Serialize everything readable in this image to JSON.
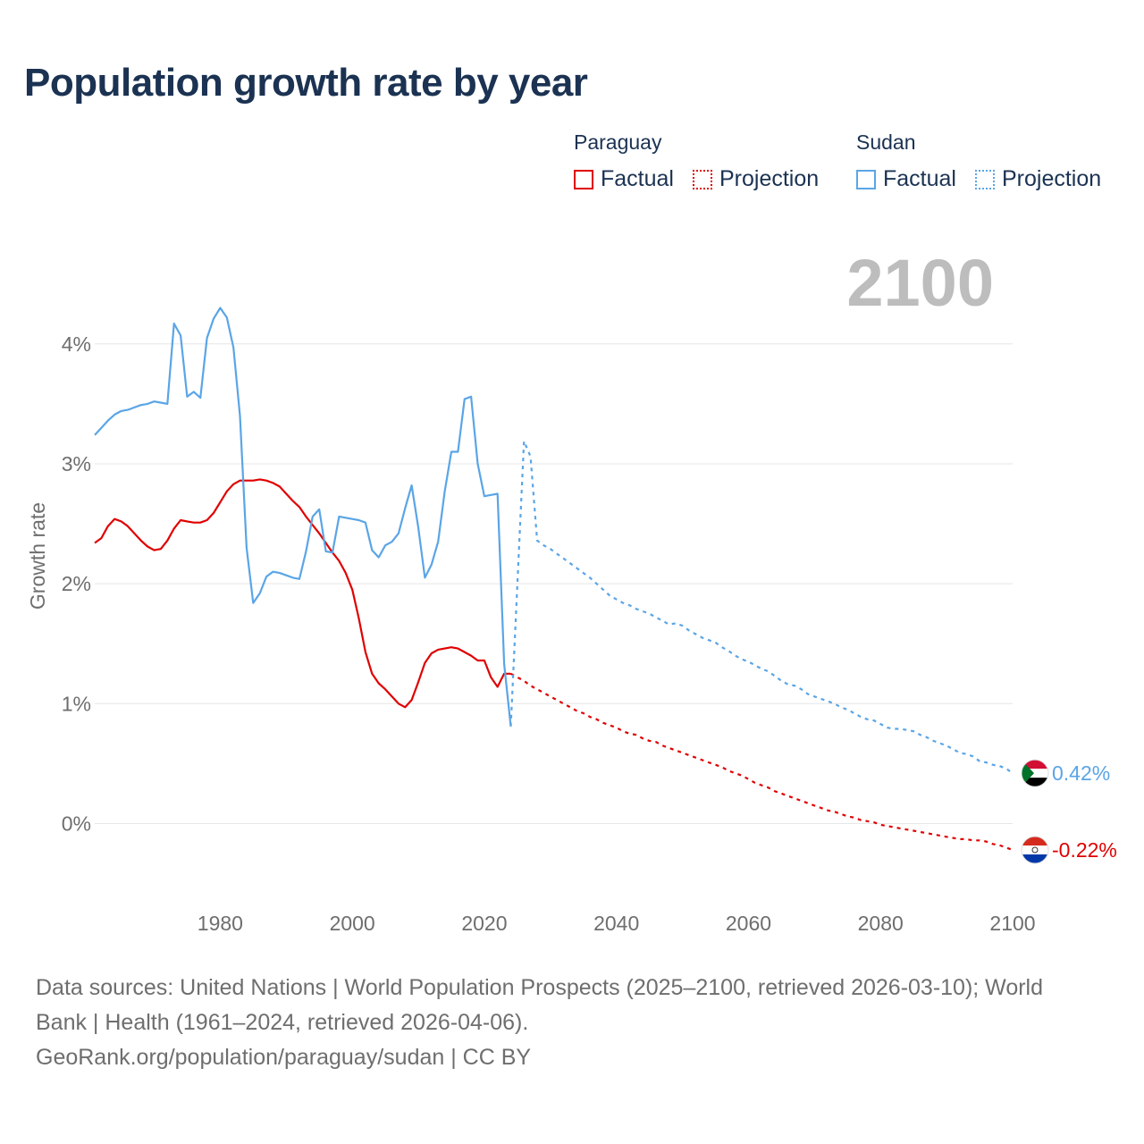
{
  "title": "Population growth rate by year",
  "legend": {
    "groups": [
      {
        "country": "Paraguay",
        "color": "#e00000",
        "factual_label": "Factual",
        "projection_label": "Projection"
      },
      {
        "country": "Sudan",
        "color": "#5aa5e6",
        "factual_label": "Factual",
        "projection_label": "Projection"
      }
    ]
  },
  "year_display": "2100",
  "source": {
    "line1": "Data sources: United Nations | World Population Prospects (2025–2100, retrieved 2026-03-10); World Bank | Health (1961–2024, retrieved 2026-04-06).",
    "line2": "GeoRank.org/population/paraguay/sudan | CC BY"
  },
  "chart_data": {
    "type": "line",
    "title": "Population growth rate by year",
    "xlabel": "",
    "ylabel": "Growth rate",
    "xlim": [
      1961,
      2100
    ],
    "ylim": [
      -0.6,
      4.9
    ],
    "x_ticks": [
      1980,
      2000,
      2020,
      2040,
      2060,
      2080,
      2100
    ],
    "y_ticks": [
      0,
      1,
      2,
      3,
      4
    ],
    "y_tick_labels": [
      "0%",
      "1%",
      "2%",
      "3%",
      "4%"
    ],
    "grid": true,
    "series": [
      {
        "name": "Paraguay",
        "color": "#e00000",
        "end_label": "-0.22%",
        "factual": {
          "x": [
            1961,
            1962,
            1963,
            1964,
            1965,
            1966,
            1967,
            1968,
            1969,
            1970,
            1971,
            1972,
            1973,
            1974,
            1975,
            1976,
            1977,
            1978,
            1979,
            1980,
            1981,
            1982,
            1983,
            1984,
            1985,
            1986,
            1987,
            1988,
            1989,
            1990,
            1991,
            1992,
            1993,
            1994,
            1995,
            1996,
            1997,
            1998,
            1999,
            2000,
            2001,
            2002,
            2003,
            2004,
            2005,
            2006,
            2007,
            2008,
            2009,
            2010,
            2011,
            2012,
            2013,
            2014,
            2015,
            2016,
            2017,
            2018,
            2019,
            2020,
            2021,
            2022,
            2023,
            2024
          ],
          "y": [
            2.34,
            2.38,
            2.48,
            2.54,
            2.52,
            2.48,
            2.42,
            2.36,
            2.31,
            2.28,
            2.29,
            2.36,
            2.46,
            2.53,
            2.52,
            2.51,
            2.51,
            2.53,
            2.59,
            2.68,
            2.77,
            2.83,
            2.86,
            2.86,
            2.86,
            2.87,
            2.86,
            2.84,
            2.81,
            2.75,
            2.69,
            2.64,
            2.56,
            2.49,
            2.42,
            2.34,
            2.26,
            2.19,
            2.09,
            1.95,
            1.71,
            1.43,
            1.25,
            1.17,
            1.12,
            1.06,
            1.0,
            0.97,
            1.03,
            1.18,
            1.34,
            1.42,
            1.45,
            1.46,
            1.47,
            1.46,
            1.43,
            1.4,
            1.36,
            1.36,
            1.22,
            1.14,
            1.25,
            1.25
          ]
        },
        "projection": {
          "x": [
            2024,
            2025,
            2026,
            2027,
            2028,
            2029,
            2030,
            2031,
            2032,
            2033,
            2034,
            2035,
            2036,
            2037,
            2038,
            2039,
            2040,
            2041,
            2042,
            2043,
            2044,
            2045,
            2046,
            2047,
            2048,
            2049,
            2050,
            2051,
            2052,
            2053,
            2054,
            2055,
            2056,
            2057,
            2058,
            2059,
            2060,
            2061,
            2062,
            2063,
            2064,
            2065,
            2066,
            2067,
            2068,
            2069,
            2070,
            2071,
            2072,
            2073,
            2074,
            2075,
            2076,
            2077,
            2078,
            2079,
            2080,
            2081,
            2082,
            2083,
            2084,
            2085,
            2086,
            2087,
            2088,
            2089,
            2090,
            2091,
            2092,
            2093,
            2094,
            2095,
            2096,
            2097,
            2098,
            2099,
            2100
          ],
          "y": [
            1.25,
            1.22,
            1.19,
            1.15,
            1.12,
            1.09,
            1.06,
            1.03,
            1.0,
            0.97,
            0.94,
            0.92,
            0.89,
            0.87,
            0.84,
            0.82,
            0.8,
            0.77,
            0.75,
            0.74,
            0.71,
            0.69,
            0.68,
            0.65,
            0.63,
            0.61,
            0.59,
            0.57,
            0.55,
            0.53,
            0.51,
            0.49,
            0.47,
            0.44,
            0.42,
            0.4,
            0.37,
            0.34,
            0.32,
            0.3,
            0.27,
            0.25,
            0.23,
            0.21,
            0.19,
            0.17,
            0.15,
            0.13,
            0.11,
            0.1,
            0.08,
            0.06,
            0.05,
            0.03,
            0.02,
            0.01,
            -0.01,
            -0.02,
            -0.03,
            -0.04,
            -0.05,
            -0.06,
            -0.07,
            -0.08,
            -0.09,
            -0.1,
            -0.11,
            -0.12,
            -0.13,
            -0.13,
            -0.14,
            -0.14,
            -0.15,
            -0.17,
            -0.18,
            -0.2,
            -0.22
          ]
        }
      },
      {
        "name": "Sudan",
        "color": "#5aa5e6",
        "end_label": "0.42%",
        "factual": {
          "x": [
            1961,
            1962,
            1963,
            1964,
            1965,
            1966,
            1967,
            1968,
            1969,
            1970,
            1971,
            1972,
            1973,
            1974,
            1975,
            1976,
            1977,
            1978,
            1979,
            1980,
            1981,
            1982,
            1983,
            1984,
            1985,
            1986,
            1987,
            1988,
            1989,
            1990,
            1991,
            1992,
            1993,
            1994,
            1995,
            1996,
            1997,
            1998,
            1999,
            2000,
            2001,
            2002,
            2003,
            2004,
            2005,
            2006,
            2007,
            2008,
            2009,
            2010,
            2011,
            2012,
            2013,
            2014,
            2015,
            2016,
            2017,
            2018,
            2019,
            2020,
            2021,
            2022,
            2023,
            2024
          ],
          "y": [
            3.24,
            3.3,
            3.36,
            3.41,
            3.44,
            3.45,
            3.47,
            3.49,
            3.5,
            3.52,
            3.51,
            3.5,
            4.17,
            4.07,
            3.56,
            3.6,
            3.55,
            4.05,
            4.21,
            4.3,
            4.22,
            3.97,
            3.4,
            2.3,
            1.84,
            1.92,
            2.06,
            2.1,
            2.09,
            2.07,
            2.05,
            2.04,
            2.27,
            2.56,
            2.62,
            2.27,
            2.26,
            2.56,
            2.55,
            2.54,
            2.53,
            2.51,
            2.28,
            2.22,
            2.32,
            2.35,
            2.42,
            2.63,
            2.82,
            2.47,
            2.05,
            2.16,
            2.35,
            2.77,
            3.1,
            3.1,
            3.54,
            3.56,
            3.0,
            2.73,
            2.74,
            2.75,
            1.33,
            0.81
          ]
        },
        "projection": {
          "x": [
            2024,
            2025,
            2026,
            2027,
            2028,
            2029,
            2030,
            2031,
            2032,
            2033,
            2034,
            2035,
            2036,
            2037,
            2038,
            2039,
            2040,
            2041,
            2042,
            2043,
            2044,
            2045,
            2046,
            2047,
            2048,
            2049,
            2050,
            2051,
            2052,
            2053,
            2054,
            2055,
            2056,
            2057,
            2058,
            2059,
            2060,
            2061,
            2062,
            2063,
            2064,
            2065,
            2066,
            2067,
            2068,
            2069,
            2070,
            2071,
            2072,
            2073,
            2074,
            2075,
            2076,
            2077,
            2078,
            2079,
            2080,
            2081,
            2082,
            2083,
            2084,
            2085,
            2086,
            2087,
            2088,
            2089,
            2090,
            2091,
            2092,
            2093,
            2094,
            2095,
            2096,
            2097,
            2098,
            2099,
            2100
          ],
          "y": [
            0.81,
            2.0,
            3.19,
            3.06,
            2.36,
            2.32,
            2.29,
            2.25,
            2.21,
            2.17,
            2.13,
            2.09,
            2.05,
            2.0,
            1.95,
            1.9,
            1.87,
            1.84,
            1.82,
            1.79,
            1.77,
            1.75,
            1.72,
            1.69,
            1.66,
            1.67,
            1.65,
            1.61,
            1.58,
            1.55,
            1.53,
            1.51,
            1.47,
            1.44,
            1.4,
            1.37,
            1.35,
            1.32,
            1.29,
            1.27,
            1.23,
            1.19,
            1.16,
            1.15,
            1.12,
            1.08,
            1.06,
            1.04,
            1.02,
            1.0,
            0.97,
            0.95,
            0.92,
            0.89,
            0.87,
            0.86,
            0.83,
            0.8,
            0.79,
            0.79,
            0.78,
            0.77,
            0.74,
            0.72,
            0.69,
            0.67,
            0.65,
            0.62,
            0.59,
            0.58,
            0.56,
            0.52,
            0.51,
            0.49,
            0.48,
            0.46,
            0.42
          ]
        }
      }
    ]
  }
}
